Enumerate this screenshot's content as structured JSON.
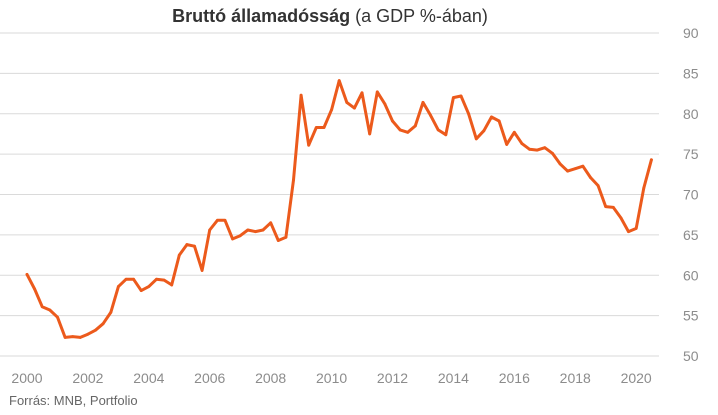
{
  "title": {
    "bold": "Bruttó államadósság",
    "rest": "(a GDP %-ában)"
  },
  "source": "Forrás: MNB, Portfolio",
  "colors": {
    "line": "#ec5a1c",
    "grid": "#dadada",
    "tick_text": "#8c8c8c"
  },
  "chart_data": {
    "type": "line",
    "title": "Bruttó államadósság (a GDP %-ában)",
    "xlabel": "",
    "ylabel": "",
    "ylim": [
      50,
      90
    ],
    "xlim": [
      2000,
      2020.75
    ],
    "y_axis_position": "right",
    "grid": "horizontal",
    "x_ticks": [
      "2000",
      "2002",
      "2004",
      "2006",
      "2008",
      "2010",
      "2012",
      "2014",
      "2016",
      "2018",
      "2020"
    ],
    "y_ticks": [
      "50",
      "55",
      "60",
      "65",
      "70",
      "75",
      "80",
      "85",
      "90"
    ],
    "series": [
      {
        "x": [
          2000.0,
          2000.25,
          2000.5,
          2000.75,
          2001.0,
          2001.25,
          2001.5,
          2001.75,
          2002.0,
          2002.25,
          2002.5,
          2002.75,
          2003.0,
          2003.25,
          2003.5,
          2003.75,
          2004.0,
          2004.25,
          2004.5,
          2004.75,
          2005.0,
          2005.25,
          2005.5,
          2005.75,
          2006.0,
          2006.25,
          2006.5,
          2006.75,
          2007.0,
          2007.25,
          2007.5,
          2007.75,
          2008.0,
          2008.25,
          2008.5,
          2008.75,
          2009.0,
          2009.25,
          2009.5,
          2009.75,
          2010.0,
          2010.25,
          2010.5,
          2010.75,
          2011.0,
          2011.25,
          2011.5,
          2011.75,
          2012.0,
          2012.25,
          2012.5,
          2012.75,
          2013.0,
          2013.25,
          2013.5,
          2013.75,
          2014.0,
          2014.25,
          2014.5,
          2014.75,
          2015.0,
          2015.25,
          2015.5,
          2015.75,
          2016.0,
          2016.25,
          2016.5,
          2016.75,
          2017.0,
          2017.25,
          2017.5,
          2017.75,
          2018.0,
          2018.25,
          2018.5,
          2018.75,
          2019.0,
          2019.25,
          2019.5,
          2019.75,
          2020.0,
          2020.25,
          2020.5
        ],
        "values": [
          60.1,
          58.3,
          56.1,
          55.7,
          54.8,
          52.3,
          52.4,
          52.3,
          52.7,
          53.2,
          54.0,
          55.4,
          58.6,
          59.5,
          59.5,
          58.1,
          58.6,
          59.5,
          59.4,
          58.8,
          62.5,
          63.8,
          63.6,
          60.6,
          65.6,
          66.8,
          66.8,
          64.5,
          64.9,
          65.6,
          65.4,
          65.6,
          66.5,
          64.3,
          64.7,
          71.8,
          82.3,
          76.1,
          78.3,
          78.3,
          80.5,
          84.1,
          81.4,
          80.7,
          82.6,
          77.5,
          82.7,
          81.2,
          79.1,
          78.0,
          77.7,
          78.5,
          81.4,
          79.8,
          78.0,
          77.4,
          82.0,
          82.2,
          80.0,
          76.9,
          77.9,
          79.6,
          79.1,
          76.2,
          77.7,
          76.3,
          75.6,
          75.5,
          75.8,
          75.1,
          73.8,
          72.9,
          73.2,
          73.5,
          72.1,
          71.1,
          68.5,
          68.4,
          67.1,
          65.4,
          65.8,
          70.8,
          74.3
        ]
      }
    ]
  }
}
